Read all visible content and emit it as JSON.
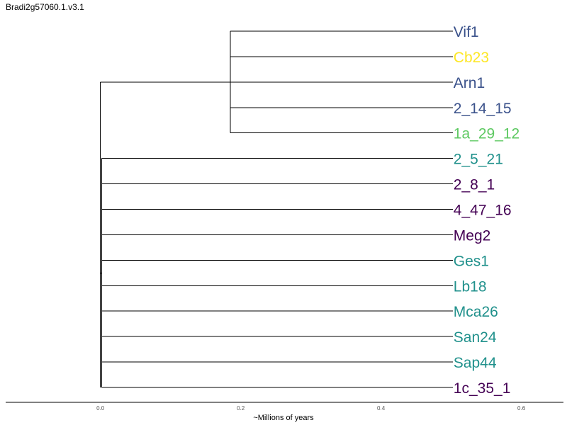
{
  "chart_data": {
    "type": "dendrogram",
    "title": "Bradi2g57060.1.v3.1",
    "xlabel": "~Millions of years",
    "xlim": [
      -0.135,
      0.66
    ],
    "xticks": [
      0.0,
      0.2,
      0.4,
      0.6
    ],
    "xtick_labels": [
      "0.0",
      "0.2",
      "0.4",
      "0.6"
    ],
    "grid": false,
    "leaf_depth": 0.48,
    "root_depth": 0.0,
    "leaves": [
      {
        "label": "Vif1",
        "color": "#3b528b"
      },
      {
        "label": "Cb23",
        "color": "#fde725"
      },
      {
        "label": "Arn1",
        "color": "#3b528b"
      },
      {
        "label": "2_14_15",
        "color": "#3b528b"
      },
      {
        "label": "1a_29_12",
        "color": "#5ec962"
      },
      {
        "label": "2_5_21",
        "color": "#21918c"
      },
      {
        "label": "2_8_1",
        "color": "#440154"
      },
      {
        "label": "4_47_16",
        "color": "#440154"
      },
      {
        "label": "Meg2",
        "color": "#440154"
      },
      {
        "label": "Ges1",
        "color": "#21918c"
      },
      {
        "label": "Lb18",
        "color": "#21918c"
      },
      {
        "label": "Mca26",
        "color": "#21918c"
      },
      {
        "label": "San24",
        "color": "#21918c"
      },
      {
        "label": "Sap44",
        "color": "#21918c"
      },
      {
        "label": "1c_35_1",
        "color": "#440154"
      }
    ],
    "clades": [
      {
        "depth": 0.185,
        "leaf_range": [
          0,
          4
        ]
      },
      {
        "depth": 0.002,
        "leaf_range": [
          5,
          14
        ]
      }
    ]
  }
}
